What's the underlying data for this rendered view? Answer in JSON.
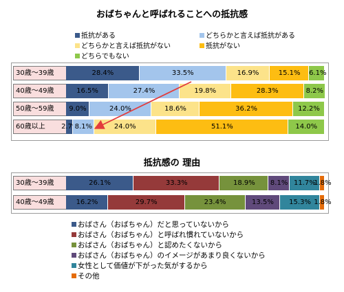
{
  "chart_data": [
    {
      "type": "bar",
      "orientation": "horizontal-stacked-100",
      "title": "おばちゃんと呼ばれることへの抵抗感",
      "categories": [
        "30歳～39歳",
        "40歳～49歳",
        "50歳～59歳",
        "60歳以上"
      ],
      "series": [
        {
          "name": "抵抗がある",
          "color": "#3b5a8a",
          "values": [
            28.4,
            16.5,
            9.0,
            2.7
          ],
          "labels": [
            "28.4%",
            "16.5%",
            "9.0%",
            "2.7%"
          ]
        },
        {
          "name": "どちらかと言えば抵抗がある",
          "color": "#a3c5ec",
          "values": [
            33.5,
            27.4,
            24.0,
            8.1
          ],
          "labels": [
            "33.5%",
            "27.4%",
            "24.0%",
            "8.1%"
          ]
        },
        {
          "name": "どちらかと言えば抵抗がない",
          "color": "#fce38a",
          "values": [
            16.9,
            19.8,
            18.6,
            24.0
          ],
          "labels": [
            "16.9%",
            "19.8%",
            "18.6%",
            "24.0%"
          ]
        },
        {
          "name": "抵抗がない",
          "color": "#fdbd12",
          "values": [
            15.1,
            28.3,
            36.2,
            51.1
          ],
          "labels": [
            "15.1%",
            "28.3%",
            "36.2%",
            "51.1%"
          ]
        },
        {
          "name": "どちらでもない",
          "color": "#8ec84a",
          "values": [
            6.1,
            8.2,
            12.2,
            14.0
          ],
          "labels": [
            "6.1%",
            "8.2%",
            "12.2%",
            "14.0%"
          ]
        }
      ],
      "legend_position": "top"
    },
    {
      "type": "bar",
      "orientation": "horizontal-stacked-100",
      "title": "抵抗感の 理由",
      "categories": [
        "30歳～39歳",
        "40歳～49歳"
      ],
      "series": [
        {
          "name": "おばさん（おばちゃん）だと思っていないから",
          "color": "#3b5a8a",
          "values": [
            26.1,
            16.2
          ],
          "labels": [
            "26.1%",
            "16.2%"
          ]
        },
        {
          "name": "おばさん（おばちゃん）と呼ばれ慣れていないから",
          "color": "#953a3a",
          "values": [
            33.3,
            29.7
          ],
          "labels": [
            "33.3%",
            "29.7%"
          ]
        },
        {
          "name": "おばさん（おばちゃん）と認めたくないから",
          "color": "#76923c",
          "values": [
            18.9,
            23.4
          ],
          "labels": [
            "18.9%",
            "23.4%"
          ]
        },
        {
          "name": "おばさん（おばちゃん）のイメージがあまり良くないから",
          "color": "#604a7b",
          "values": [
            8.1,
            13.5
          ],
          "labels": [
            "8.1%",
            "13.5%"
          ]
        },
        {
          "name": "女性として価値が下がった気がするから",
          "color": "#31859c",
          "values": [
            11.7,
            15.3
          ],
          "labels": [
            "11.7%",
            "15.3%"
          ]
        },
        {
          "name": "その他",
          "color": "#e46c0a",
          "values": [
            1.8,
            1.8
          ],
          "labels": [
            "1.8%",
            "1.8%"
          ]
        }
      ],
      "legend_position": "bottom"
    }
  ]
}
